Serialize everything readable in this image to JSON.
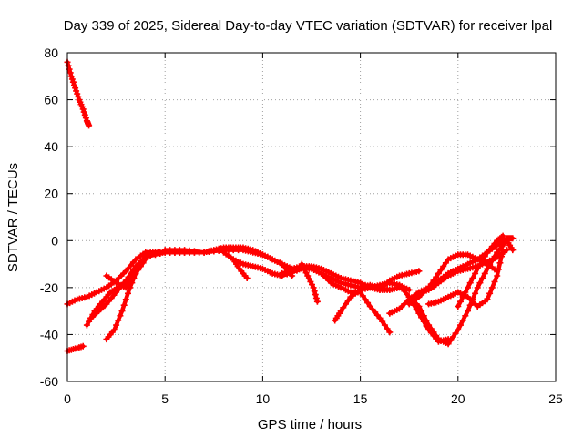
{
  "chart_data": {
    "type": "scatter",
    "title": "Day 339 of 2025, Sidereal Day-to-day VTEC variation (SDTVAR) for receiver lpal",
    "xlabel": "GPS time / hours",
    "ylabel": "SDTVAR / TECUs",
    "xlim": [
      0,
      25
    ],
    "ylim": [
      -60,
      80
    ],
    "xticks": [
      0,
      5,
      10,
      15,
      20,
      25
    ],
    "yticks": [
      -60,
      -40,
      -20,
      0,
      20,
      40,
      60,
      80
    ],
    "grid": true,
    "legend": "none",
    "marker": "plus",
    "color": "#ff0000",
    "series": [
      {
        "name": "track-1",
        "x": [
          0.0,
          0.2,
          0.4,
          0.6,
          0.8,
          1.0,
          1.1
        ],
        "y": [
          76,
          70,
          65,
          60,
          56,
          51,
          49
        ]
      },
      {
        "name": "track-2",
        "x": [
          0.0,
          0.5,
          1.0,
          1.5,
          2.0,
          2.5,
          3.0,
          3.5,
          4.0,
          4.5,
          5.0,
          6.0,
          7.0,
          8.0
        ],
        "y": [
          -27,
          -25,
          -24,
          -22,
          -20,
          -17,
          -13,
          -8,
          -5,
          -5,
          -5,
          -5,
          -5,
          -4
        ]
      },
      {
        "name": "track-3",
        "x": [
          0.0,
          0.4,
          0.8
        ],
        "y": [
          -47,
          -46,
          -45
        ]
      },
      {
        "name": "track-4",
        "x": [
          1.0,
          1.4,
          1.8,
          2.2,
          2.6,
          3.0,
          3.5,
          4.0,
          5.0,
          6.0
        ],
        "y": [
          -36,
          -30,
          -26,
          -22,
          -20,
          -18,
          -12,
          -7,
          -5,
          -5
        ]
      },
      {
        "name": "track-5",
        "x": [
          2.0,
          2.4,
          2.8,
          3.2,
          3.6,
          4.0,
          4.5,
          5.0,
          6.0,
          7.0,
          8.0,
          9.0,
          9.5,
          10.0,
          11.0,
          11.5
        ],
        "y": [
          -42,
          -38,
          -30,
          -20,
          -12,
          -7,
          -5,
          -5,
          -5,
          -5,
          -4,
          -4,
          -5,
          -6,
          -10,
          -15
        ]
      },
      {
        "name": "track-6",
        "x": [
          1.2,
          1.6,
          2.0,
          2.5,
          3.0,
          3.5,
          4.0
        ],
        "y": [
          -33,
          -30,
          -27,
          -22,
          -17,
          -11,
          -7
        ]
      },
      {
        "name": "track-7",
        "x": [
          2.0,
          2.5,
          3.0,
          3.5,
          4.0
        ],
        "y": [
          -15,
          -18,
          -20,
          -14,
          -8
        ]
      },
      {
        "name": "track-8",
        "x": [
          5.0,
          6.0,
          7.0,
          7.5,
          8.0,
          8.5,
          9.0,
          9.5,
          10.0,
          10.5,
          11.0,
          11.5,
          12.0,
          12.5,
          13.0,
          13.5,
          14.0,
          14.5,
          15.0,
          15.5,
          16.0,
          16.5,
          17.0
        ],
        "y": [
          -4,
          -4,
          -5,
          -4,
          -3,
          -3,
          -3,
          -4,
          -6,
          -8,
          -10,
          -12,
          -11,
          -11,
          -12,
          -14,
          -16,
          -17,
          -18,
          -20,
          -21,
          -21,
          -20
        ]
      },
      {
        "name": "track-9",
        "x": [
          8.0,
          8.5,
          9.0,
          9.5,
          10.0,
          10.5,
          11.0,
          12.0
        ],
        "y": [
          -5,
          -8,
          -10,
          -11,
          -12,
          -14,
          -15,
          -12
        ]
      },
      {
        "name": "track-10",
        "x": [
          8.5,
          8.8,
          9.2
        ],
        "y": [
          -8,
          -12,
          -16
        ]
      },
      {
        "name": "track-11",
        "x": [
          12.0,
          12.3,
          12.6,
          12.8
        ],
        "y": [
          -10,
          -15,
          -20,
          -26
        ]
      },
      {
        "name": "track-12",
        "x": [
          11.0,
          11.5,
          12.0,
          12.5,
          13.0,
          13.5,
          14.0,
          14.5,
          15.0,
          15.5,
          16.0,
          16.5
        ],
        "y": [
          -14,
          -13,
          -12,
          -12,
          -14,
          -16,
          -18,
          -19,
          -20,
          -19,
          -20,
          -21
        ]
      },
      {
        "name": "track-13",
        "x": [
          13.0,
          13.5,
          14.0,
          14.5,
          15.0,
          15.5,
          16.0,
          16.5
        ],
        "y": [
          -14,
          -18,
          -20,
          -22,
          -22,
          -28,
          -33,
          -39
        ]
      },
      {
        "name": "track-14",
        "x": [
          13.7,
          14.0,
          14.5,
          15.0,
          15.5,
          16.0,
          16.5,
          17.0,
          17.5
        ],
        "y": [
          -34,
          -30,
          -24,
          -21,
          -20,
          -19,
          -18,
          -19,
          -21
        ]
      },
      {
        "name": "track-15",
        "x": [
          16.0,
          16.5,
          17.0,
          17.5,
          18.0
        ],
        "y": [
          -21,
          -17,
          -15,
          -14,
          -13
        ]
      },
      {
        "name": "track-16",
        "x": [
          17.0,
          17.5,
          18.0,
          18.5,
          19.0,
          19.5
        ],
        "y": [
          -19,
          -24,
          -31,
          -38,
          -43,
          -42
        ]
      },
      {
        "name": "track-17",
        "x": [
          16.5,
          17.0,
          17.5,
          18.0,
          18.5,
          19.0,
          19.5,
          20.0,
          20.5,
          21.0,
          21.5,
          22.0,
          22.5,
          22.8
        ],
        "y": [
          -31,
          -29,
          -25,
          -22,
          -20,
          -17,
          -14,
          -12,
          -10,
          -8,
          -5,
          -2,
          1,
          1
        ]
      },
      {
        "name": "track-18",
        "x": [
          17.5,
          18.0,
          18.5,
          19.0,
          19.5,
          20.0,
          20.5,
          21.0,
          21.5,
          22.0,
          22.5,
          22.8
        ],
        "y": [
          -24,
          -28,
          -36,
          -42,
          -44,
          -38,
          -30,
          -20,
          -12,
          -5,
          0,
          -4
        ]
      },
      {
        "name": "track-19",
        "x": [
          17.5,
          18.0,
          18.5,
          19.0,
          19.5,
          20.0,
          20.5,
          21.0,
          21.5,
          22.0
        ],
        "y": [
          -27,
          -24,
          -20,
          -14,
          -8,
          -6,
          -6,
          -8,
          -10,
          -13
        ]
      },
      {
        "name": "track-20",
        "x": [
          18.0,
          18.5,
          19.0,
          19.5,
          20.0,
          20.5,
          21.0,
          21.5,
          22.0,
          22.5
        ],
        "y": [
          -22,
          -21,
          -18,
          -15,
          -13,
          -12,
          -11,
          -9,
          -7,
          -4
        ]
      },
      {
        "name": "track-21",
        "x": [
          18.5,
          19.0,
          19.5,
          20.0,
          20.5,
          21.0,
          21.5,
          22.0,
          22.3
        ],
        "y": [
          -27,
          -26,
          -24,
          -22,
          -24,
          -28,
          -25,
          -15,
          -4
        ]
      },
      {
        "name": "track-22",
        "x": [
          20.0,
          20.5,
          21.0,
          21.5,
          22.0,
          22.3
        ],
        "y": [
          -28,
          -20,
          -12,
          -5,
          0,
          2
        ]
      }
    ]
  }
}
